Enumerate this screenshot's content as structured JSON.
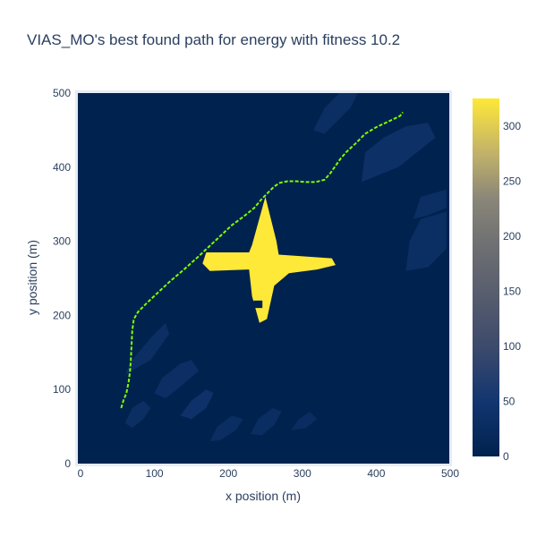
{
  "chart_data": {
    "type": "heatmap",
    "title": "VIAS_MO's best found path for energy with fitness 10.2",
    "xlabel": "x position (m)",
    "ylabel": "y position (m)",
    "xlim": [
      0,
      500
    ],
    "ylim": [
      0,
      500
    ],
    "x_ticks": [
      "0",
      "100",
      "200",
      "300",
      "400",
      "500"
    ],
    "y_ticks": [
      "0",
      "100",
      "200",
      "300",
      "400",
      "500"
    ],
    "colorbar": {
      "colorscale": "cividis",
      "range": [
        0,
        325
      ],
      "ticks": [
        "0",
        "50",
        "100",
        "150",
        "200",
        "250",
        "300"
      ]
    },
    "background_value": 0,
    "high_region": {
      "value": 325,
      "description_points": [
        [
          232,
          226
        ],
        [
          228,
          262
        ],
        [
          175,
          260
        ],
        [
          165,
          270
        ],
        [
          170,
          285
        ],
        [
          228,
          285
        ],
        [
          232,
          295
        ],
        [
          250,
          360
        ],
        [
          265,
          300
        ],
        [
          268,
          282
        ],
        [
          340,
          277
        ],
        [
          345,
          268
        ],
        [
          320,
          262
        ],
        [
          282,
          257
        ],
        [
          262,
          240
        ],
        [
          252,
          195
        ],
        [
          242,
          190
        ]
      ],
      "hole": [
        240,
        215
      ]
    },
    "low_blocks": [
      {
        "value": 30,
        "points": [
          [
            60,
            120
          ],
          [
            70,
            140
          ],
          [
            95,
            170
          ],
          [
            115,
            190
          ],
          [
            120,
            175
          ],
          [
            95,
            140
          ]
        ]
      },
      {
        "value": 32,
        "points": [
          [
            100,
            95
          ],
          [
            110,
            115
          ],
          [
            135,
            135
          ],
          [
            150,
            140
          ],
          [
            160,
            125
          ],
          [
            130,
            100
          ],
          [
            115,
            88
          ]
        ]
      },
      {
        "value": 38,
        "points": [
          [
            135,
            65
          ],
          [
            150,
            85
          ],
          [
            170,
            100
          ],
          [
            180,
            95
          ],
          [
            170,
            75
          ],
          [
            150,
            60
          ]
        ]
      },
      {
        "value": 30,
        "points": [
          [
            60,
            55
          ],
          [
            70,
            75
          ],
          [
            85,
            85
          ],
          [
            95,
            75
          ],
          [
            85,
            60
          ],
          [
            70,
            48
          ]
        ]
      },
      {
        "value": 30,
        "points": [
          [
            315,
            450
          ],
          [
            330,
            480
          ],
          [
            350,
            500
          ],
          [
            375,
            500
          ],
          [
            365,
            480
          ],
          [
            345,
            460
          ],
          [
            330,
            445
          ]
        ]
      },
      {
        "value": 35,
        "points": [
          [
            380,
            380
          ],
          [
            385,
            420
          ],
          [
            410,
            440
          ],
          [
            440,
            455
          ],
          [
            470,
            460
          ],
          [
            480,
            440
          ],
          [
            455,
            420
          ],
          [
            430,
            400
          ]
        ]
      },
      {
        "value": 30,
        "points": [
          [
            440,
            260
          ],
          [
            445,
            300
          ],
          [
            460,
            330
          ],
          [
            495,
            340
          ],
          [
            495,
            290
          ],
          [
            470,
            265
          ]
        ]
      },
      {
        "value": 30,
        "points": [
          [
            450,
            330
          ],
          [
            460,
            360
          ],
          [
            495,
            370
          ],
          [
            495,
            345
          ],
          [
            470,
            335
          ]
        ]
      },
      {
        "value": 28,
        "points": [
          [
            175,
            30
          ],
          [
            185,
            50
          ],
          [
            205,
            65
          ],
          [
            220,
            60
          ],
          [
            210,
            45
          ],
          [
            190,
            32
          ]
        ]
      },
      {
        "value": 28,
        "points": [
          [
            230,
            40
          ],
          [
            240,
            60
          ],
          [
            260,
            75
          ],
          [
            272,
            70
          ],
          [
            262,
            52
          ],
          [
            245,
            38
          ]
        ]
      },
      {
        "value": 26,
        "points": [
          [
            285,
            45
          ],
          [
            295,
            60
          ],
          [
            310,
            70
          ],
          [
            320,
            60
          ],
          [
            305,
            48
          ]
        ]
      }
    ],
    "series": [
      {
        "name": "",
        "color": "#7fff00",
        "dash": "dash",
        "x": [
          55,
          58,
          62,
          65,
          67,
          68,
          69,
          70,
          72,
          78,
          90,
          105,
          120,
          140,
          160,
          175,
          190,
          205,
          220,
          235,
          245,
          255,
          262,
          270,
          280,
          292,
          305,
          318,
          330,
          338,
          345,
          352,
          360,
          372,
          385,
          400,
          415,
          432,
          436
        ],
        "y": [
          75,
          85,
          95,
          110,
          125,
          140,
          160,
          180,
          195,
          205,
          217,
          231,
          245,
          262,
          280,
          294,
          308,
          322,
          333,
          345,
          357,
          367,
          374,
          379,
          381,
          381,
          380,
          380,
          383,
          392,
          402,
          412,
          421,
          432,
          445,
          454,
          461,
          469,
          474
        ]
      }
    ]
  }
}
